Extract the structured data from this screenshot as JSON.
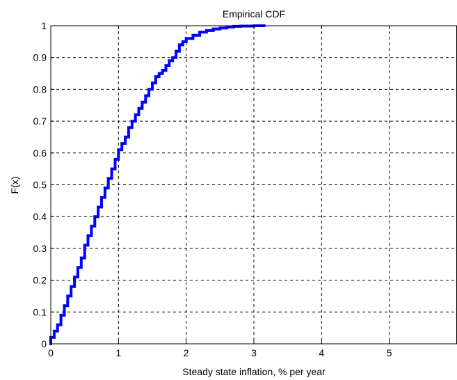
{
  "chart_data": {
    "type": "line",
    "title": "Empirical CDF",
    "xlabel": "Steady state inflation, % per year",
    "ylabel": "F(x)",
    "xlim": [
      0,
      6
    ],
    "ylim": [
      0,
      1
    ],
    "x_ticks": [
      "0",
      "1",
      "2",
      "3",
      "4",
      "5"
    ],
    "y_ticks": [
      "0",
      "0.1",
      "0.2",
      "0.3",
      "0.4",
      "0.5",
      "0.6",
      "0.7",
      "0.8",
      "0.9",
      "1"
    ],
    "grid": true,
    "step": true,
    "colors": {
      "series": "#0000ff",
      "grid": "#000000",
      "axes": "#000000"
    },
    "series": [
      {
        "x": [
          0.0,
          0.05,
          0.1,
          0.15,
          0.2,
          0.25,
          0.3,
          0.35,
          0.4,
          0.45,
          0.5,
          0.55,
          0.6,
          0.65,
          0.7,
          0.75,
          0.8,
          0.85,
          0.9,
          0.95,
          1.0,
          1.05,
          1.1,
          1.15,
          1.2,
          1.25,
          1.3,
          1.35,
          1.4,
          1.45,
          1.5,
          1.55,
          1.6,
          1.65,
          1.7,
          1.75,
          1.8,
          1.85,
          1.9,
          1.95,
          2.0,
          2.1,
          2.2,
          2.3,
          2.4,
          2.5,
          2.6,
          2.7,
          2.8,
          3.0,
          3.15
        ],
        "y": [
          0.02,
          0.04,
          0.06,
          0.09,
          0.12,
          0.15,
          0.18,
          0.21,
          0.24,
          0.27,
          0.31,
          0.34,
          0.37,
          0.4,
          0.43,
          0.46,
          0.49,
          0.52,
          0.55,
          0.58,
          0.61,
          0.63,
          0.65,
          0.68,
          0.7,
          0.72,
          0.74,
          0.76,
          0.78,
          0.8,
          0.82,
          0.84,
          0.85,
          0.86,
          0.875,
          0.89,
          0.9,
          0.92,
          0.94,
          0.95,
          0.96,
          0.97,
          0.98,
          0.985,
          0.99,
          0.993,
          0.996,
          0.998,
          0.999,
          1.0,
          1.0
        ]
      }
    ]
  }
}
